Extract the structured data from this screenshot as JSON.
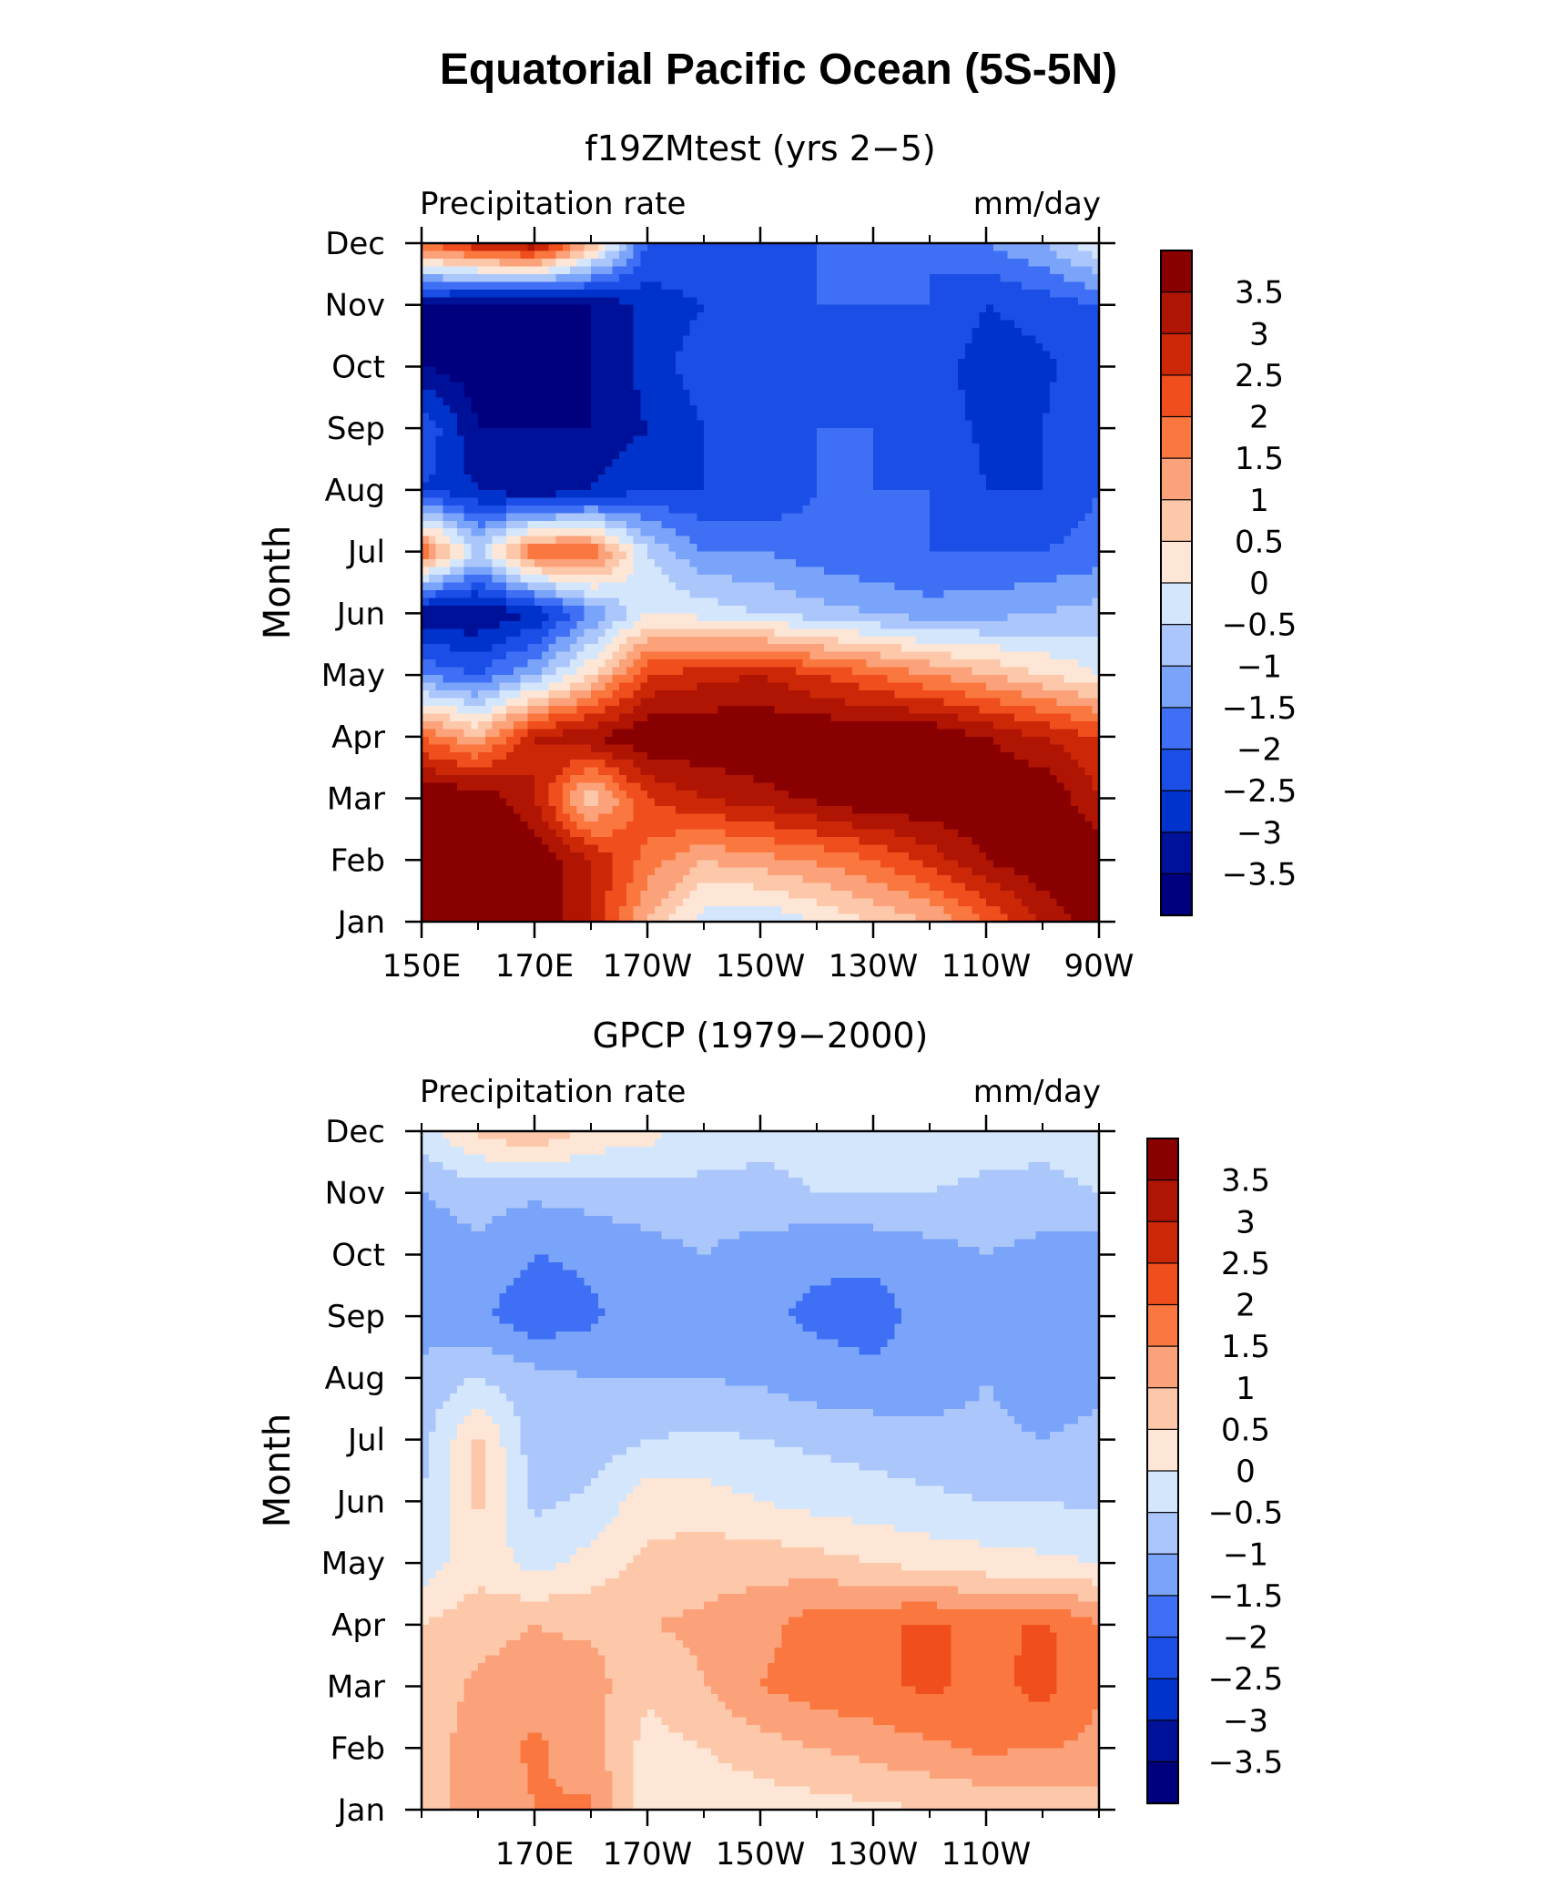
{
  "figure": {
    "title": "Equatorial Pacific Ocean (5S-5N)"
  },
  "colors": {
    "levels": [
      -3.5,
      -3,
      -2.5,
      -2,
      -1.5,
      -1,
      -0.5,
      0,
      0.5,
      1,
      1.5,
      2,
      2.5,
      3,
      3.5
    ],
    "palette": [
      "#00007f",
      "#001199",
      "#0033cc",
      "#1a4ee6",
      "#3f6ff5",
      "#7aa4fa",
      "#abc6fb",
      "#d4e6fc",
      "#fde6d6",
      "#fdc8aa",
      "#fca27a",
      "#fa7840",
      "#f04e1c",
      "#cc2808",
      "#b01503",
      "#880000"
    ]
  },
  "chart_data": [
    {
      "type": "heatmap",
      "title": "f19ZMtest (yrs 2−5)",
      "variable": "Precipitation rate",
      "units": "mm/day",
      "xlabel": "",
      "ylabel": "Month",
      "x_ticks": [
        "150E",
        "170E",
        "170W",
        "150W",
        "130W",
        "110W",
        "90W"
      ],
      "y_ticks": [
        "Jan",
        "Feb",
        "Mar",
        "Apr",
        "May",
        "Jun",
        "Jul",
        "Aug",
        "Sep",
        "Oct",
        "Nov",
        "Dec"
      ],
      "xlim": [
        150,
        270
      ],
      "colorbar_labels": [
        "3.5",
        "3",
        "2.5",
        "2",
        "1.5",
        "1",
        "0.5",
        "0",
        "−0.5",
        "−1",
        "−1.5",
        "−2",
        "−2.5",
        "−3",
        "−3.5"
      ],
      "x": [
        150,
        160,
        170,
        180,
        190,
        200,
        210,
        220,
        230,
        240,
        250,
        260,
        270
      ],
      "months": [
        "Jan",
        "Feb",
        "Mar",
        "Apr",
        "May",
        "Jun",
        "Jul",
        "Aug",
        "Sep",
        "Oct",
        "Nov",
        "Dec"
      ],
      "z": [
        [
          4.0,
          4.0,
          4.0,
          3.0,
          1.0,
          -0.3,
          -0.5,
          0.0,
          0.5,
          1.0,
          2.0,
          3.0,
          4.0
        ],
        [
          4.0,
          4.0,
          4.0,
          3.0,
          1.8,
          1.0,
          1.3,
          1.6,
          2.0,
          2.7,
          3.5,
          4.0,
          4.0
        ],
        [
          4.0,
          4.0,
          3.0,
          0.6,
          2.5,
          3.0,
          3.3,
          3.6,
          4.0,
          4.0,
          4.0,
          4.0,
          3.0
        ],
        [
          2.0,
          1.0,
          3.0,
          3.5,
          4.0,
          4.0,
          4.0,
          4.0,
          4.0,
          4.0,
          3.5,
          3.0,
          2.5
        ],
        [
          -1.5,
          -2.0,
          -1.0,
          0.5,
          2.5,
          2.8,
          3.0,
          2.5,
          2.0,
          1.5,
          1.0,
          0.5,
          0.0
        ],
        [
          -3.5,
          -3.5,
          -3.0,
          -1.5,
          0.0,
          -0.2,
          -0.5,
          -0.8,
          -1.0,
          -1.3,
          -1.2,
          -1.0,
          -0.8
        ],
        [
          2.0,
          -0.5,
          2.0,
          2.0,
          -0.5,
          -1.5,
          -1.5,
          -1.8,
          -2.0,
          -2.0,
          -2.0,
          -2.0,
          -1.8
        ],
        [
          -2.5,
          -3.0,
          -3.5,
          -3.0,
          -2.5,
          -2.5,
          -2.5,
          -2.0,
          -2.0,
          -2.0,
          -2.5,
          -2.5,
          -2.0
        ],
        [
          -2.0,
          -3.5,
          -3.5,
          -3.5,
          -3.0,
          -2.5,
          -2.5,
          -2.0,
          -2.0,
          -2.2,
          -2.6,
          -2.5,
          -2.0
        ],
        [
          -3.5,
          -3.8,
          -3.8,
          -3.5,
          -2.8,
          -2.2,
          -2.2,
          -2.1,
          -2.0,
          -2.2,
          -2.8,
          -2.6,
          -2.2
        ],
        [
          -3.5,
          -3.8,
          -3.9,
          -3.5,
          -2.8,
          -2.5,
          -2.2,
          -2.0,
          -2.0,
          -2.0,
          -2.5,
          -2.3,
          -2.0
        ],
        [
          2.0,
          3.0,
          3.5,
          1.0,
          -2.0,
          -2.0,
          -2.0,
          -2.0,
          -2.0,
          -2.0,
          -1.5,
          -1.0,
          0.0
        ]
      ]
    },
    {
      "type": "heatmap",
      "title": "GPCP (1979−2000)",
      "variable": "Precipitation rate",
      "units": "mm/day",
      "xlabel": "",
      "ylabel": "Month",
      "x_ticks": [
        "170E",
        "170W",
        "150W",
        "130W",
        "110W"
      ],
      "y_ticks": [
        "Jan",
        "Feb",
        "Mar",
        "Apr",
        "May",
        "Jun",
        "Jul",
        "Aug",
        "Sep",
        "Oct",
        "Nov",
        "Dec"
      ],
      "xlim": [
        150,
        270
      ],
      "colorbar_labels": [
        "3.5",
        "3",
        "2.5",
        "2",
        "1.5",
        "1",
        "0.5",
        "0",
        "−0.5",
        "−1",
        "−1.5",
        "−2",
        "−2.5",
        "−3",
        "−3.5"
      ],
      "x": [
        150,
        160,
        170,
        180,
        190,
        200,
        210,
        220,
        230,
        240,
        250,
        260,
        270
      ],
      "months": [
        "Jan",
        "Feb",
        "Mar",
        "Apr",
        "May",
        "Jun",
        "Jul",
        "Aug",
        "Sep",
        "Oct",
        "Nov",
        "Dec"
      ],
      "z": [
        [
          0.8,
          1.2,
          1.5,
          1.6,
          0.2,
          0.1,
          0.2,
          0.3,
          0.4,
          0.5,
          0.6,
          0.7,
          0.8
        ],
        [
          0.8,
          1.2,
          1.6,
          1.2,
          0.3,
          0.5,
          0.8,
          1.0,
          1.2,
          1.4,
          1.6,
          1.5,
          1.4
        ],
        [
          0.7,
          1.1,
          1.3,
          1.2,
          0.6,
          1.0,
          1.5,
          1.8,
          1.9,
          2.1,
          1.8,
          2.2,
          1.5
        ],
        [
          0.5,
          0.8,
          1.0,
          0.9,
          1.0,
          1.1,
          1.3,
          1.8,
          1.9,
          2.1,
          1.8,
          2.1,
          1.5
        ],
        [
          -0.3,
          0.3,
          -0.2,
          0.2,
          0.6,
          0.8,
          0.8,
          0.7,
          0.5,
          0.3,
          0.2,
          0.1,
          0.0
        ],
        [
          -0.5,
          0.6,
          -0.6,
          -0.4,
          0.3,
          0.2,
          0.0,
          -0.2,
          -0.3,
          -0.4,
          -0.5,
          -0.5,
          -0.6
        ],
        [
          -0.7,
          0.6,
          -0.8,
          -0.8,
          -0.5,
          -0.4,
          -0.5,
          -0.6,
          -0.7,
          -0.8,
          -0.9,
          -1.0,
          -0.9
        ],
        [
          -0.8,
          -0.5,
          -0.8,
          -1.0,
          -1.0,
          -1.0,
          -1.1,
          -1.3,
          -1.4,
          -1.3,
          -1.0,
          -1.2,
          -1.1
        ],
        [
          -1.3,
          -1.4,
          -1.9,
          -1.6,
          -1.2,
          -1.0,
          -1.4,
          -1.6,
          -1.7,
          -1.3,
          -1.0,
          -1.4,
          -1.3
        ],
        [
          -1.3,
          -1.1,
          -1.5,
          -1.4,
          -1.2,
          -1.0,
          -1.3,
          -1.4,
          -1.4,
          -1.2,
          -1.0,
          -1.2,
          -1.3
        ],
        [
          -1.0,
          -0.8,
          -0.9,
          -0.8,
          -0.7,
          -0.6,
          -0.6,
          -0.5,
          -0.5,
          -0.5,
          -0.6,
          -0.6,
          -0.5
        ],
        [
          -0.3,
          0.6,
          1.0,
          0.4,
          0.2,
          -0.3,
          -0.4,
          -0.4,
          -0.3,
          -0.3,
          -0.3,
          -0.4,
          -0.3
        ]
      ]
    }
  ]
}
